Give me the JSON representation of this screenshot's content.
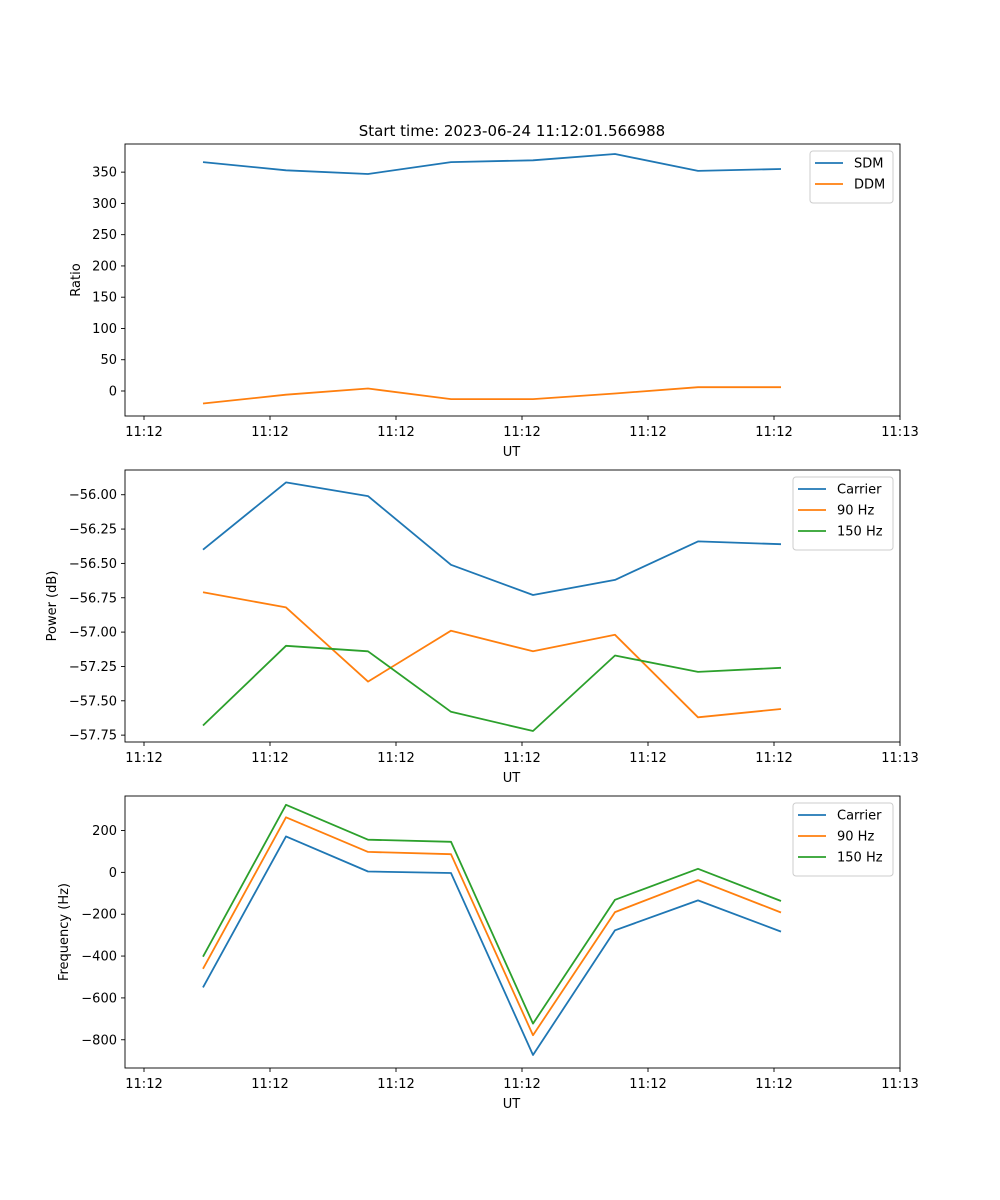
{
  "figure": {
    "title": "Start time: 2023-06-24 11:12:01.566988"
  },
  "colors": {
    "series_1": "#1f77b4",
    "series_2": "#ff7f0e",
    "series_3": "#2ca02c"
  },
  "chart_data": [
    {
      "type": "line",
      "title": "Start time: 2023-06-24 11:12:01.566988",
      "xlabel": "UT",
      "ylabel": "Ratio",
      "x_tick_labels": [
        "11:12",
        "11:12",
        "11:12",
        "11:12",
        "11:12",
        "11:12",
        "11:13"
      ],
      "y_ticks": [
        0,
        50,
        100,
        150,
        200,
        250,
        300,
        350
      ],
      "y_tick_labels": [
        "0",
        "50",
        "100",
        "150",
        "200",
        "250",
        "300",
        "350"
      ],
      "ylim": [
        -40,
        395
      ],
      "grid": false,
      "legend": "top-right",
      "series": [
        {
          "name": "SDM",
          "values": [
            366,
            353,
            347,
            366,
            369,
            379,
            352,
            355
          ]
        },
        {
          "name": "DDM",
          "values": [
            -20,
            -6,
            4,
            -13,
            -13,
            -4,
            6,
            6
          ]
        }
      ]
    },
    {
      "type": "line",
      "xlabel": "UT",
      "ylabel": "Power (dB)",
      "x_tick_labels": [
        "11:12",
        "11:12",
        "11:12",
        "11:12",
        "11:12",
        "11:12",
        "11:13"
      ],
      "y_ticks": [
        -57.75,
        -57.5,
        -57.25,
        -57.0,
        -56.75,
        -56.5,
        -56.25,
        -56.0
      ],
      "y_tick_labels": [
        "−57.75",
        "−57.50",
        "−57.25",
        "−57.00",
        "−56.75",
        "−56.50",
        "−56.25",
        "−56.00"
      ],
      "ylim": [
        -57.8,
        -55.82
      ],
      "grid": false,
      "legend": "top-right",
      "series": [
        {
          "name": "Carrier",
          "values": [
            -56.4,
            -55.91,
            -56.01,
            -56.51,
            -56.73,
            -56.62,
            -56.34,
            -56.36
          ]
        },
        {
          "name": "90 Hz",
          "values": [
            -56.71,
            -56.82,
            -57.36,
            -56.99,
            -57.14,
            -57.02,
            -57.62,
            -57.56
          ]
        },
        {
          "name": "150 Hz",
          "values": [
            -57.68,
            -57.1,
            -57.14,
            -57.58,
            -57.72,
            -57.17,
            -57.29,
            -57.26
          ]
        }
      ]
    },
    {
      "type": "line",
      "xlabel": "UT",
      "ylabel": "Frequency (Hz)",
      "x_tick_labels": [
        "11:12",
        "11:12",
        "11:12",
        "11:12",
        "11:12",
        "11:12",
        "11:13"
      ],
      "y_ticks": [
        -800,
        -600,
        -400,
        -200,
        0,
        200
      ],
      "y_tick_labels": [
        "−800",
        "−600",
        "−400",
        "−200",
        "0",
        "200"
      ],
      "ylim": [
        -935,
        365
      ],
      "grid": false,
      "legend": "top-right",
      "series": [
        {
          "name": "Carrier",
          "values": [
            -550,
            172,
            4,
            -3,
            -873,
            -277,
            -134,
            -283
          ]
        },
        {
          "name": "90 Hz",
          "values": [
            -461,
            263,
            98,
            87,
            -778,
            -190,
            -37,
            -192
          ]
        },
        {
          "name": "150 Hz",
          "values": [
            -403,
            323,
            156,
            146,
            -723,
            -131,
            17,
            -137
          ]
        }
      ]
    }
  ]
}
